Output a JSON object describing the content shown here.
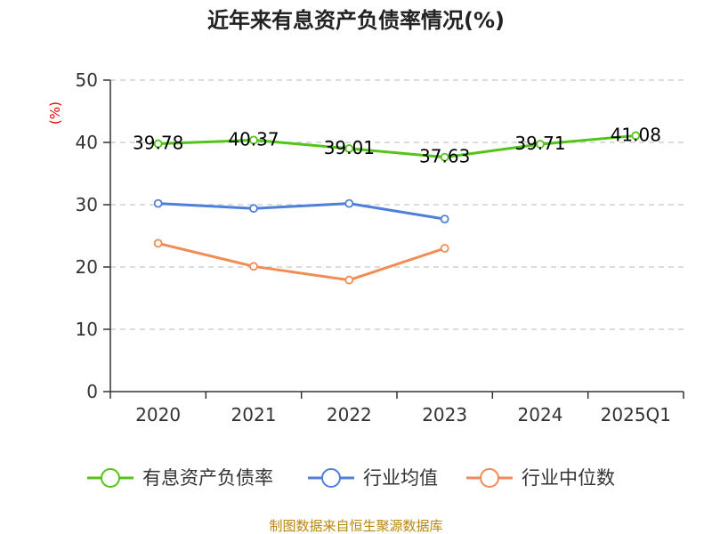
{
  "chart_data": {
    "type": "line",
    "title": "近年来有息资产负债率情况(%)",
    "ylabel": "(%)",
    "categories": [
      "2020",
      "2021",
      "2022",
      "2023",
      "2024",
      "2025Q1"
    ],
    "ylim": [
      0,
      50
    ],
    "yticks": [
      0,
      10,
      20,
      30,
      40,
      50
    ],
    "grid": true,
    "legend_position": "bottom",
    "series": [
      {
        "name": "有息资产负债率",
        "color": "#52c41a",
        "values": [
          39.78,
          40.37,
          39.01,
          37.63,
          39.71,
          41.08
        ],
        "labels": [
          "39.78",
          "40.37",
          "39.01",
          "37.63",
          "39.71",
          "41.08"
        ]
      },
      {
        "name": "行业均值",
        "color": "#4e7fdb",
        "values": [
          30.2,
          29.4,
          30.2,
          27.7,
          null,
          null
        ]
      },
      {
        "name": "行业中位数",
        "color": "#f28b54",
        "values": [
          23.8,
          20.1,
          17.9,
          23.0,
          null,
          null
        ]
      }
    ]
  },
  "source_note": "制图数据来自恒生聚源数据库"
}
